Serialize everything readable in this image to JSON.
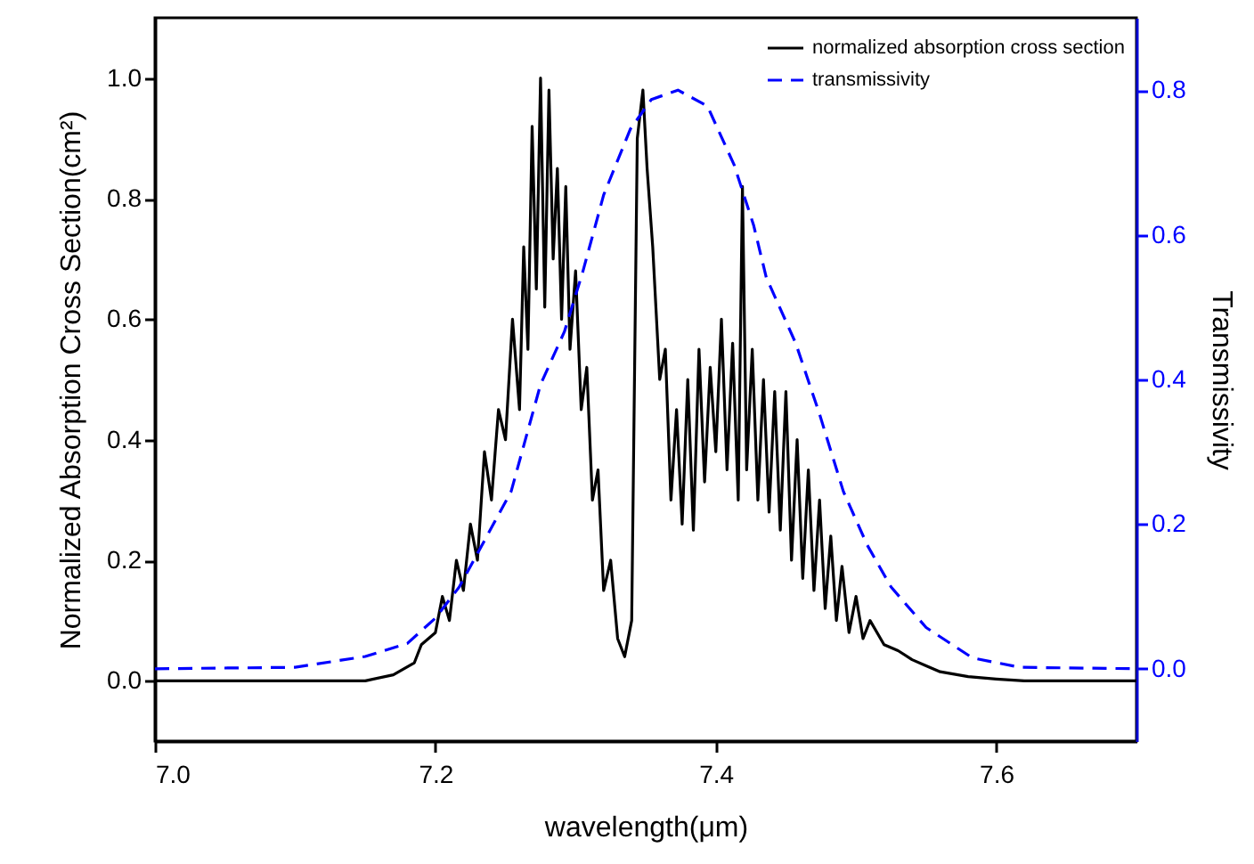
{
  "chart_data": {
    "type": "line",
    "xlabel": "wavelength(μm)",
    "ylabel": "Normalized Absorption Cross Section(cm²)",
    "y2label": "Transmissivity",
    "xlim": [
      7.0,
      7.7
    ],
    "xticks": [
      {
        "value": 7,
        "label": "7.0"
      },
      7.2,
      7.4,
      7.6
    ],
    "ylim": [
      -0.1,
      1.1
    ],
    "yticks": [
      {
        "value": 0,
        "label": "0.0"
      },
      0.2,
      0.4,
      0.6,
      0.8,
      {
        "value": 1,
        "label": "1.0"
      }
    ],
    "y2lim": [
      -0.1,
      0.9
    ],
    "y2ticks": [
      {
        "value": 0,
        "label": "0.0"
      },
      0.2,
      0.4,
      0.6,
      0.8
    ],
    "legend": "top right",
    "grid": false,
    "marker": "none",
    "series": [
      {
        "name": "normalized absorption cross section",
        "color": "#000000",
        "line_style": "solid",
        "x": [
          7.0,
          7.1,
          7.15,
          7.17,
          7.185,
          7.19,
          7.2,
          7.205,
          7.21,
          7.215,
          7.22,
          7.225,
          7.23,
          7.235,
          7.24,
          7.245,
          7.25,
          7.255,
          7.26,
          7.263,
          7.266,
          7.269,
          7.272,
          7.275,
          7.278,
          7.281,
          7.284,
          7.287,
          7.29,
          7.293,
          7.296,
          7.3,
          7.304,
          7.308,
          7.312,
          7.316,
          7.32,
          7.325,
          7.33,
          7.335,
          7.34,
          7.344,
          7.348,
          7.351,
          7.355,
          7.36,
          7.364,
          7.368,
          7.372,
          7.376,
          7.38,
          7.384,
          7.388,
          7.392,
          7.396,
          7.4,
          7.404,
          7.408,
          7.412,
          7.416,
          7.419,
          7.422,
          7.426,
          7.43,
          7.434,
          7.438,
          7.442,
          7.446,
          7.45,
          7.454,
          7.458,
          7.462,
          7.466,
          7.47,
          7.474,
          7.478,
          7.482,
          7.486,
          7.49,
          7.495,
          7.5,
          7.505,
          7.51,
          7.52,
          7.53,
          7.54,
          7.55,
          7.56,
          7.58,
          7.6,
          7.62,
          7.7
        ],
        "values": [
          0.0,
          0.0,
          0.0,
          0.01,
          0.03,
          0.06,
          0.08,
          0.14,
          0.1,
          0.2,
          0.15,
          0.26,
          0.2,
          0.38,
          0.3,
          0.45,
          0.4,
          0.6,
          0.45,
          0.72,
          0.55,
          0.92,
          0.65,
          1.0,
          0.62,
          0.98,
          0.7,
          0.85,
          0.6,
          0.82,
          0.55,
          0.68,
          0.45,
          0.52,
          0.3,
          0.35,
          0.15,
          0.2,
          0.07,
          0.04,
          0.1,
          0.9,
          0.98,
          0.85,
          0.72,
          0.5,
          0.55,
          0.3,
          0.45,
          0.26,
          0.5,
          0.25,
          0.55,
          0.33,
          0.52,
          0.38,
          0.6,
          0.35,
          0.56,
          0.3,
          0.82,
          0.35,
          0.55,
          0.3,
          0.5,
          0.28,
          0.48,
          0.25,
          0.48,
          0.2,
          0.4,
          0.17,
          0.35,
          0.15,
          0.3,
          0.12,
          0.24,
          0.1,
          0.19,
          0.08,
          0.14,
          0.07,
          0.1,
          0.06,
          0.05,
          0.035,
          0.025,
          0.015,
          0.007,
          0.003,
          0.0,
          0.0
        ]
      },
      {
        "name": "transmissivity",
        "color": "#0000ff",
        "line_style": "dashed",
        "axis": "y2",
        "x": [
          7.0,
          7.1,
          7.15,
          7.18,
          7.2,
          7.217,
          7.254,
          7.275,
          7.292,
          7.305,
          7.32,
          7.339,
          7.354,
          7.373,
          7.394,
          7.413,
          7.427,
          7.436,
          7.457,
          7.474,
          7.491,
          7.508,
          7.525,
          7.55,
          7.583,
          7.617,
          7.7
        ],
        "values": [
          0.0,
          0.002,
          0.017,
          0.035,
          0.07,
          0.113,
          0.245,
          0.393,
          0.466,
          0.548,
          0.655,
          0.746,
          0.787,
          0.8,
          0.778,
          0.697,
          0.613,
          0.541,
          0.45,
          0.352,
          0.245,
          0.171,
          0.113,
          0.057,
          0.015,
          0.002,
          0.0
        ]
      }
    ]
  }
}
